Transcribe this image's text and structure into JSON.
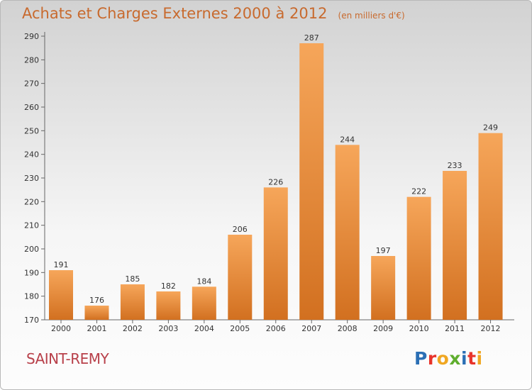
{
  "header": {
    "title": "Achats et Charges Externes 2000 à 2012",
    "subtitle": "(en milliers d'€)"
  },
  "footer": {
    "city": "SAINT-REMY",
    "logo_text": "Proxiti",
    "logo_colors": [
      "#2b6fb5",
      "#e8342b",
      "#f0a722",
      "#5fae2e",
      "#2b6fb5",
      "#e8342b",
      "#f0a722"
    ]
  },
  "colors": {
    "bar_light": "#f6a65a",
    "bar_dark": "#d27020",
    "text_accent": "#c86a2e"
  },
  "chart_data": {
    "type": "bar",
    "categories": [
      "2000",
      "2001",
      "2002",
      "2003",
      "2004",
      "2005",
      "2006",
      "2007",
      "2008",
      "2009",
      "2010",
      "2011",
      "2012"
    ],
    "values": [
      191,
      176,
      185,
      182,
      184,
      206,
      226,
      287,
      244,
      197,
      222,
      233,
      249
    ],
    "title": "Achats et Charges Externes 2000 à 2012",
    "subtitle": "(en milliers d'€)",
    "ylim": [
      170,
      290
    ],
    "yticks": [
      170,
      180,
      190,
      200,
      210,
      220,
      230,
      240,
      250,
      260,
      270,
      280,
      290
    ],
    "grid": false,
    "data_labels": true
  }
}
